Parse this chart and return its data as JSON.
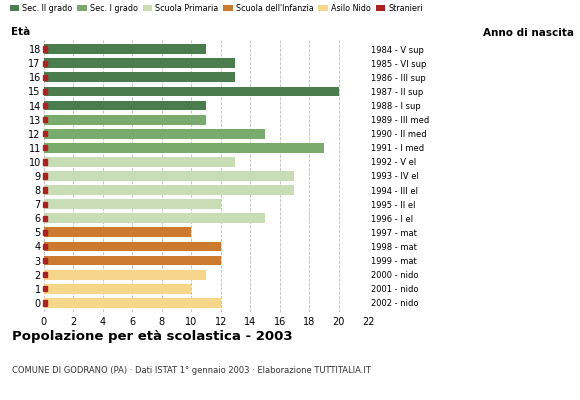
{
  "ages": [
    18,
    17,
    16,
    15,
    14,
    13,
    12,
    11,
    10,
    9,
    8,
    7,
    6,
    5,
    4,
    3,
    2,
    1,
    0
  ],
  "values": [
    11,
    13,
    13,
    20,
    11,
    11,
    15,
    19,
    13,
    17,
    17,
    12,
    15,
    10,
    12,
    12,
    11,
    10,
    12
  ],
  "bar_colors": [
    "#4a7c4e",
    "#4a7c4e",
    "#4a7c4e",
    "#4a7c4e",
    "#4a7c4e",
    "#7aab6e",
    "#7aab6e",
    "#7aab6e",
    "#c8ddb4",
    "#c8ddb4",
    "#c8ddb4",
    "#c8ddb4",
    "#c8ddb4",
    "#cc7a30",
    "#cc7a30",
    "#cc7a30",
    "#f5d68a",
    "#f5d68a",
    "#f5d68a"
  ],
  "right_labels": [
    "1984 - V sup",
    "1985 - VI sup",
    "1986 - III sup",
    "1987 - II sup",
    "1988 - I sup",
    "1989 - III med",
    "1990 - II med",
    "1991 - I med",
    "1992 - V el",
    "1993 - IV el",
    "1994 - III el",
    "1995 - II el",
    "1996 - I el",
    "1997 - mat",
    "1998 - mat",
    "1999 - mat",
    "2000 - nido",
    "2001 - nido",
    "2002 - nido"
  ],
  "stranieri_color": "#aa2222",
  "legend_items": [
    {
      "label": "Sec. II grado",
      "color": "#4a7c4e"
    },
    {
      "label": "Sec. I grado",
      "color": "#7aab6e"
    },
    {
      "label": "Scuola Primaria",
      "color": "#c8ddb4"
    },
    {
      "label": "Scuola dell'Infanzia",
      "color": "#cc7a30"
    },
    {
      "label": "Asilo Nido",
      "color": "#f5d68a"
    },
    {
      "label": "Stranieri",
      "color": "#aa2222"
    }
  ],
  "title": "Popolazione per età scolastica - 2003",
  "subtitle": "COMUNE DI GODRANO (PA) · Dati ISTAT 1° gennaio 2003 · Elaborazione TUTTITALIA.IT",
  "xlabel_left": "Età",
  "xlabel_right": "Anno di nascita",
  "xlim": [
    0,
    22
  ],
  "xticks": [
    0,
    2,
    4,
    6,
    8,
    10,
    12,
    14,
    16,
    18,
    20,
    22
  ],
  "background_color": "#ffffff",
  "grid_color": "#bbbbbb"
}
